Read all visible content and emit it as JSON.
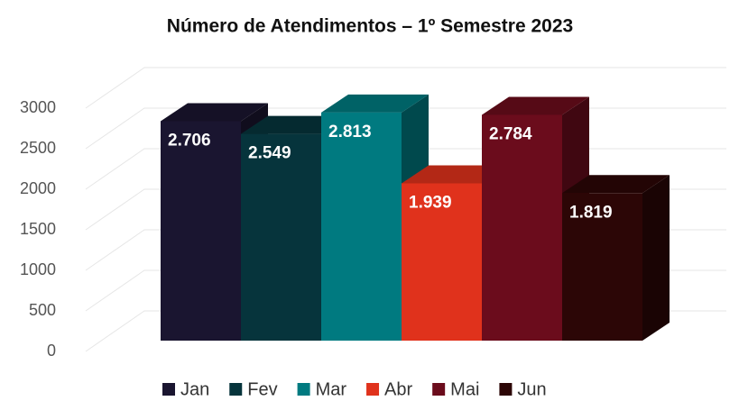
{
  "chart_data": {
    "type": "bar3d",
    "title": "Número de Atendimentos – 1º Semestre 2023",
    "categories": [
      "Jan",
      "Fev",
      "Mar",
      "Abr",
      "Mai",
      "Jun"
    ],
    "values": [
      2706,
      2549,
      2813,
      1939,
      2784,
      1819
    ],
    "value_labels": [
      "2.706",
      "2.549",
      "2.813",
      "1.939",
      "2.784",
      "1.819"
    ],
    "colors": [
      "#1a1530",
      "#06343c",
      "#007a80",
      "#e0321c",
      "#6b0c1c",
      "#2c0606"
    ],
    "ylim": [
      0,
      3000
    ],
    "yticks": [
      0,
      500,
      1000,
      1500,
      2000,
      2500,
      3000
    ],
    "grid": true,
    "legend": "bottom"
  }
}
